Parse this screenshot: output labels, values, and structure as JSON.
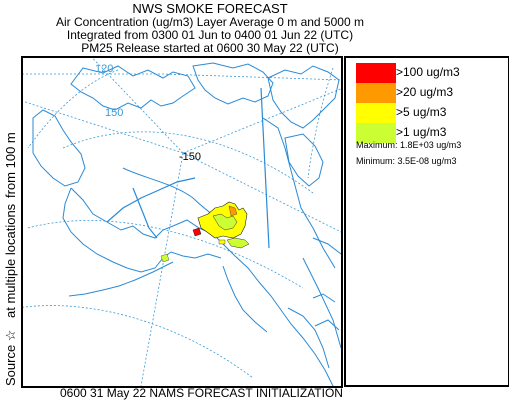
{
  "header": {
    "title": "NWS SMOKE FORECAST",
    "line2": "Air Concentration (ug/m3) Layer Average    0 m and  5000 m",
    "line3": "Integrated from 0300 01 Jun to 0400 01 Jun 22 (UTC)",
    "line4": "PM25 Release started at 0600 30 May 22 (UTC)"
  },
  "side_label": {
    "part1": "Source ☆",
    "part2": "at multiple locations",
    "part3": "from   100 m"
  },
  "map": {
    "longitude_labels": [
      "120",
      "150",
      "-150"
    ],
    "colors": {
      "water_coast": "#2a8ad6",
      "graticule": "#3a9ad6",
      "smoke_high": "#ff0000",
      "smoke_mid": "#ff9900",
      "smoke_low": "#ffff00",
      "smoke_min": "#ccff33"
    }
  },
  "legend": {
    "items": [
      {
        "label": ">100 ug/m3",
        "color": "#ff0000"
      },
      {
        "label": ">20 ug/m3",
        "color": "#ff9900"
      },
      {
        "label": ">5 ug/m3",
        "color": "#ffff00"
      },
      {
        "label": ">1 ug/m3",
        "color": "#ccff33"
      }
    ],
    "maximum": "Maximum: 1.8E+03 ug/m3",
    "minimum": "Minimum: 3.5E-08 ug/m3"
  },
  "footer": {
    "text": "0600 31 May 22 NAMS FORECAST INITIALIZATION"
  }
}
